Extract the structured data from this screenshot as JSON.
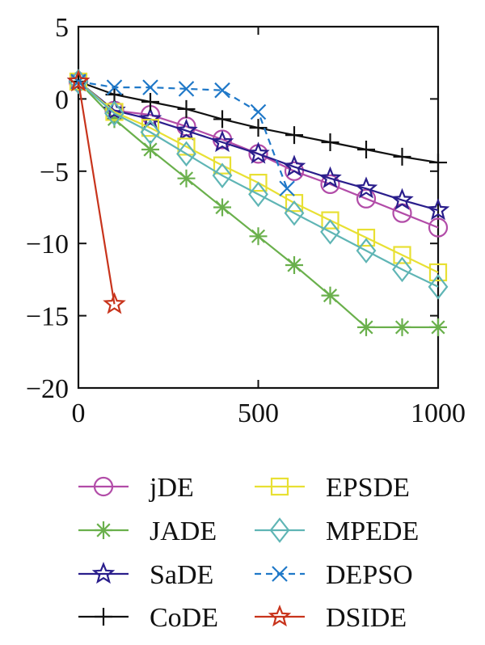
{
  "chart_data": {
    "type": "line",
    "title": "",
    "xlabel": "",
    "ylabel": "",
    "xlim": [
      0,
      1000
    ],
    "ylim": [
      -20,
      5
    ],
    "xticks": [
      0,
      500,
      1000
    ],
    "xtick_labels": [
      "0",
      "500",
      "1000"
    ],
    "yticks": [
      5,
      0,
      -5,
      -10,
      -15,
      -20
    ],
    "ytick_labels": [
      "5",
      "0",
      "−5",
      "−10",
      "−15",
      "−20"
    ],
    "grid": false,
    "legend_position": "bottom",
    "series": [
      {
        "name": "jDE",
        "color": "#b24ca8",
        "marker": "circle",
        "dash": "solid",
        "x": [
          0,
          100,
          200,
          300,
          400,
          500,
          600,
          700,
          800,
          900,
          1000
        ],
        "y": [
          1.2,
          -0.8,
          -1.1,
          -1.9,
          -2.8,
          -3.8,
          -5.0,
          -5.9,
          -6.9,
          -7.9,
          -8.9
        ]
      },
      {
        "name": "JADE",
        "color": "#6ab04c",
        "marker": "asterisk",
        "dash": "solid",
        "x": [
          0,
          100,
          200,
          300,
          400,
          500,
          600,
          700,
          800,
          900,
          1000
        ],
        "y": [
          1.2,
          -1.4,
          -3.5,
          -5.5,
          -7.5,
          -9.5,
          -11.5,
          -13.6,
          -15.8,
          -15.8,
          -15.8
        ]
      },
      {
        "name": "SaDE",
        "color": "#2a1e8c",
        "marker": "star",
        "dash": "solid",
        "x": [
          0,
          100,
          200,
          300,
          400,
          500,
          600,
          700,
          800,
          900,
          1000
        ],
        "y": [
          1.2,
          -0.8,
          -1.4,
          -2.2,
          -3.0,
          -3.8,
          -4.7,
          -5.5,
          -6.2,
          -7.0,
          -7.7
        ]
      },
      {
        "name": "CoDE",
        "color": "#111111",
        "marker": "plus",
        "dash": "solid",
        "x": [
          0,
          100,
          200,
          300,
          400,
          500,
          600,
          700,
          800,
          900,
          1000
        ],
        "y": [
          1.2,
          0.3,
          -0.2,
          -0.7,
          -1.4,
          -2.0,
          -2.5,
          -3.0,
          -3.5,
          -4.0,
          -4.4
        ]
      },
      {
        "name": "EPSDE",
        "color": "#e8e033",
        "marker": "square",
        "dash": "solid",
        "x": [
          0,
          100,
          200,
          300,
          400,
          500,
          600,
          700,
          800,
          900,
          1000
        ],
        "y": [
          1.2,
          -0.9,
          -2.0,
          -3.3,
          -4.6,
          -5.8,
          -7.2,
          -8.4,
          -9.6,
          -10.8,
          -12.0
        ]
      },
      {
        "name": "MPEDE",
        "color": "#5fb5b5",
        "marker": "diamond",
        "dash": "solid",
        "x": [
          0,
          100,
          200,
          300,
          400,
          500,
          600,
          700,
          800,
          900,
          1000
        ],
        "y": [
          1.2,
          -1.0,
          -2.3,
          -3.8,
          -5.3,
          -6.6,
          -7.9,
          -9.2,
          -10.5,
          -11.8,
          -13.0
        ]
      },
      {
        "name": "DEPSO",
        "color": "#1f78c8",
        "marker": "x",
        "dash": "dashed",
        "x": [
          0,
          100,
          200,
          300,
          400,
          500,
          580
        ],
        "y": [
          1.2,
          0.8,
          0.8,
          0.7,
          0.6,
          -0.9,
          -6.2
        ]
      },
      {
        "name": "DSIDE",
        "color": "#c8341c",
        "marker": "star",
        "dash": "solid",
        "x": [
          0,
          100
        ],
        "y": [
          1.2,
          -14.2
        ]
      }
    ]
  }
}
